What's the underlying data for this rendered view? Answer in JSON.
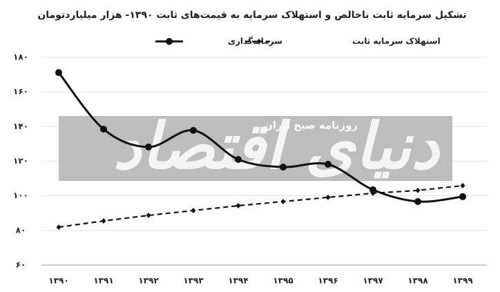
{
  "chart_data": {
    "type": "line",
    "title": "تشکیل سرمایه ثابت ناخالص و استهلاک سرمایه به قیمت‌های ثابت ۱۳۹۰- هزار میلیاردتومان",
    "watermark": "دنیای اقتصاد",
    "watermark_subtitle": "روزنامه صبح ایران",
    "categories": [
      "۱۳۹۰",
      "۱۳۹۱",
      "۱۳۹۲",
      "۱۳۹۳",
      "۱۳۹۴",
      "۱۳۹۵",
      "۱۳۹۶",
      "۱۳۹۷",
      "۱۳۹۸",
      "۱۳۹۹"
    ],
    "series": [
      {
        "name": "سرمایه‌گذاری",
        "color": "#111111",
        "style": "solid",
        "marker": "circle",
        "values": [
          171.2,
          138.5,
          128.2,
          137.8,
          121,
          116.6,
          118.2,
          103.5,
          96.7,
          99.5
        ]
      },
      {
        "name": "استهلاک سرمایه ثابت",
        "color": "#111111",
        "style": "dashed",
        "marker": "diamond",
        "values": [
          81.9,
          85.5,
          88.7,
          91.5,
          94.3,
          96.7,
          99.1,
          101.5,
          103.1,
          105.9
        ]
      }
    ],
    "ylim": [
      60,
      180
    ],
    "yticks": [
      {
        "value": 60,
        "label": "۶۰"
      },
      {
        "value": 80,
        "label": "۸۰"
      },
      {
        "value": 100,
        "label": "۱۰۰"
      },
      {
        "value": 120,
        "label": "۱۲۰"
      },
      {
        "value": 140,
        "label": "۱۴۰"
      },
      {
        "value": 160,
        "label": "۱۶۰"
      },
      {
        "value": 180,
        "label": "۱۸۰"
      }
    ],
    "grid": true
  }
}
